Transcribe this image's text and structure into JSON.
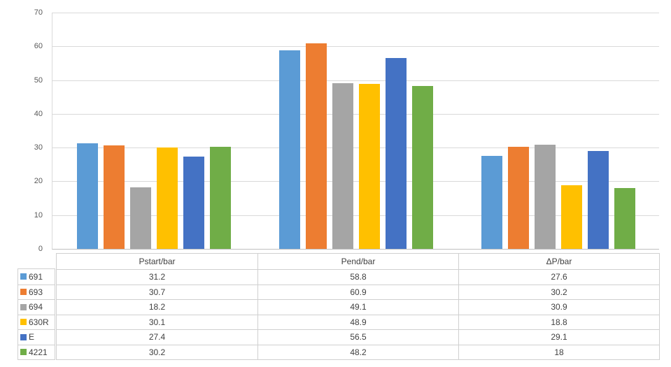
{
  "chart_data": {
    "type": "bar",
    "title": "",
    "xlabel": "",
    "ylabel": "",
    "categories": [
      "Pstart/bar",
      "Pend/bar",
      "ΔP/bar"
    ],
    "series": [
      {
        "name": "691",
        "color": "#5B9BD5",
        "values": [
          31.2,
          58.8,
          27.6
        ],
        "display": [
          "31.2",
          "58.8",
          "27.6"
        ]
      },
      {
        "name": "693",
        "color": "#ED7D31",
        "values": [
          30.7,
          60.9,
          30.2
        ],
        "display": [
          "30.7",
          "60.9",
          "30.2"
        ]
      },
      {
        "name": "694",
        "color": "#A5A5A5",
        "values": [
          18.2,
          49.1,
          30.9
        ],
        "display": [
          "18.2",
          "49.1",
          "30.9"
        ]
      },
      {
        "name": "630R",
        "color": "#FFC000",
        "values": [
          30.1,
          48.9,
          18.8
        ],
        "display": [
          "30.1",
          "48.9",
          "18.8"
        ]
      },
      {
        "name": "E",
        "color": "#4472C4",
        "values": [
          27.4,
          56.5,
          29.1
        ],
        "display": [
          "27.4",
          "56.5",
          "29.1"
        ]
      },
      {
        "name": "4221",
        "color": "#70AD47",
        "values": [
          30.2,
          48.2,
          18
        ],
        "display": [
          "30.2",
          "48.2",
          "18"
        ]
      }
    ],
    "ylim": [
      0,
      70
    ],
    "yticks": [
      0,
      10,
      20,
      30,
      40,
      50,
      60,
      70
    ],
    "grid": "horizontal",
    "legend_position": "data-table-left",
    "data_table": true
  },
  "styles": {
    "gridline_color": "#d9d9d9",
    "axis_line_color": "#bfbfbf",
    "table_border_color": "#d0d0d0",
    "text_color": "#404040",
    "axis_text_color": "#595959",
    "background": "#ffffff"
  }
}
